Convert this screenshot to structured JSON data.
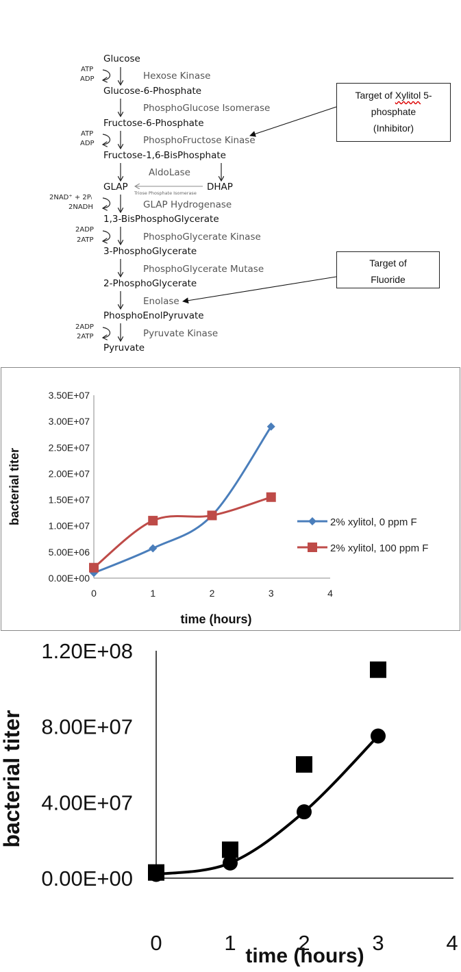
{
  "pathway": {
    "metabolites": {
      "glucose": "Glucose",
      "g6p": "Glucose-6-Phosphate",
      "f6p": "Fructose-6-Phosphate",
      "f16bp": "Fructose-1,6-BisPhosphate",
      "glap": "GLAP",
      "dhap": "DHAP",
      "bpg13": "1,3-BisPhosphoGlycerate",
      "pg3": "3-PhosphoGlycerate",
      "pg2": "2-PhosphoGlycerate",
      "pep": "PhosphoEnolPyruvate",
      "pyruvate": "Pyruvate"
    },
    "enzymes": {
      "hk": "Hexose Kinase",
      "pgi": "PhosphoGlucose Isomerase",
      "pfk": "PhosphoFructose Kinase",
      "ald": "AldoLase",
      "gapdh": "GLAP Hydrogenase",
      "pgk": "PhosphoGlycerate Kinase",
      "pgm": "PhosphoGlycerate Mutase",
      "eno": "Enolase",
      "pk": "Pyruvate Kinase",
      "tpi": "Triose Phosphate Isomerase"
    },
    "cofactors": {
      "hk_in": "ATP",
      "hk_out": "ADP",
      "pfk_in": "ATP",
      "pfk_out": "ADP",
      "gapdh_in": "2NAD⁺ + 2Pᵢ",
      "gapdh_out": "2NADH",
      "pgk_in": "2ADP",
      "pgk_out": "2ATP",
      "pk_in": "2ADP",
      "pk_out": "2ATP"
    },
    "callouts": {
      "xylitol_pre": "Target of ",
      "xylitol_word": "Xylitol",
      "xylitol_post": " 5-",
      "xylitol_line2": "phosphate",
      "xylitol_line3": "(Inhibitor)",
      "fluoride_line1": "Target of",
      "fluoride_line2": "Fluoride"
    }
  },
  "chart_data": [
    {
      "type": "line",
      "xlabel": "time (hours)",
      "ylabel": "bacterial  titer",
      "xlim": [
        0,
        4
      ],
      "ylim": [
        0,
        35000000
      ],
      "x_ticks": [
        "0",
        "1",
        "2",
        "3",
        "4"
      ],
      "y_ticks": [
        "0.00E+00",
        "5.00E+06",
        "1.00E+07",
        "1.50E+07",
        "2.00E+07",
        "2.50E+07",
        "3.00E+07",
        "3.50E+07"
      ],
      "legend_position": "right",
      "series": [
        {
          "name": "2% xylitol, 0 ppm F",
          "color": "#4a7ebb",
          "marker": "diamond",
          "x": [
            0,
            1,
            2,
            3
          ],
          "values": [
            1000000,
            5700000,
            12000000,
            29000000
          ]
        },
        {
          "name": "2% xylitol, 100 ppm F",
          "color": "#be4b48",
          "marker": "square",
          "x": [
            0,
            1,
            2,
            3
          ],
          "values": [
            2000000,
            11000000,
            12000000,
            15500000
          ]
        }
      ]
    },
    {
      "type": "scatter",
      "xlabel": "time (hours)",
      "ylabel": "bacterial  titer",
      "xlim": [
        0,
        4
      ],
      "ylim": [
        0,
        120000000
      ],
      "x_ticks": [
        "0",
        "1",
        "2",
        "3",
        "4"
      ],
      "y_ticks": [
        "0.00E+00",
        "4.00E+07",
        "8.00E+07",
        "1.20E+08"
      ],
      "series": [
        {
          "marker": "circle",
          "fit_line": true,
          "color": "#000000",
          "x": [
            0,
            1,
            2,
            3
          ],
          "values": [
            2000000,
            8000000,
            35000000,
            75000000
          ]
        },
        {
          "marker": "square",
          "fit_line": false,
          "color": "#000000",
          "x": [
            0,
            1,
            2,
            3
          ],
          "values": [
            3000000,
            15000000,
            60000000,
            110000000
          ]
        }
      ]
    }
  ]
}
